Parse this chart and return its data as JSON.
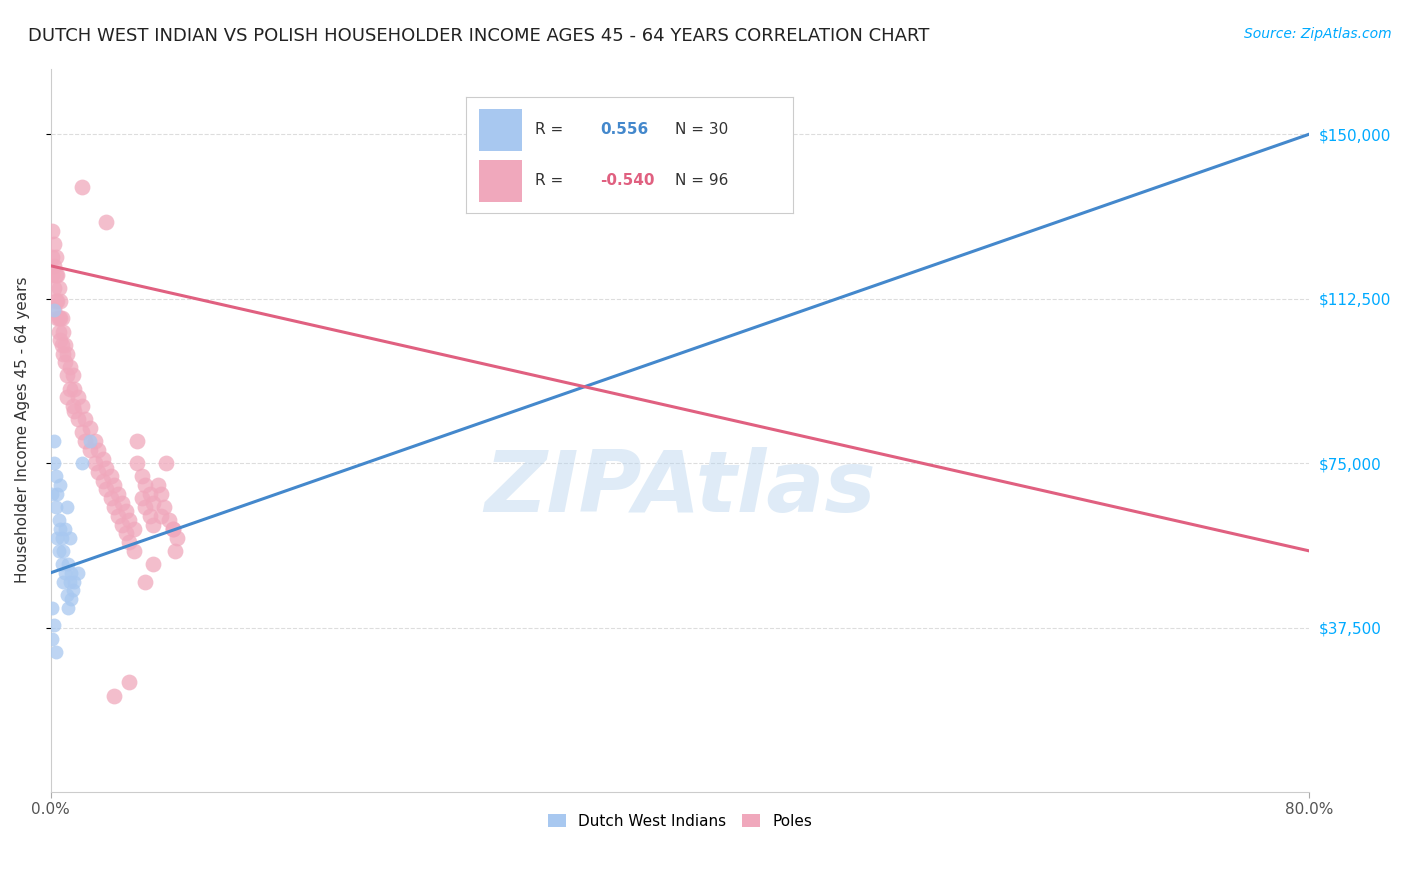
{
  "title": "DUTCH WEST INDIAN VS POLISH HOUSEHOLDER INCOME AGES 45 - 64 YEARS CORRELATION CHART",
  "source": "Source: ZipAtlas.com",
  "ylabel": "Householder Income Ages 45 - 64 years",
  "yticks": [
    37500,
    75000,
    112500,
    150000
  ],
  "ytick_labels": [
    "$37,500",
    "$75,000",
    "$112,500",
    "$150,000"
  ],
  "blue_color": "#a8c8f0",
  "pink_color": "#f0a8bc",
  "blue_line_color": "#4488cc",
  "pink_line_color": "#e06080",
  "watermark": "ZIPAtlas",
  "blue_line_x0": 0.0,
  "blue_line_y0": 50000,
  "blue_line_x1": 0.8,
  "blue_line_y1": 150000,
  "pink_line_x0": 0.0,
  "pink_line_y0": 120000,
  "pink_line_x1": 0.8,
  "pink_line_y1": 55000,
  "blue_points": [
    [
      0.001,
      68000
    ],
    [
      0.002,
      75000
    ],
    [
      0.002,
      80000
    ],
    [
      0.003,
      65000
    ],
    [
      0.003,
      72000
    ],
    [
      0.004,
      58000
    ],
    [
      0.004,
      68000
    ],
    [
      0.005,
      55000
    ],
    [
      0.005,
      62000
    ],
    [
      0.006,
      60000
    ],
    [
      0.006,
      70000
    ],
    [
      0.007,
      52000
    ],
    [
      0.007,
      58000
    ],
    [
      0.008,
      48000
    ],
    [
      0.008,
      55000
    ],
    [
      0.009,
      50000
    ],
    [
      0.009,
      60000
    ],
    [
      0.01,
      65000
    ],
    [
      0.01,
      45000
    ],
    [
      0.011,
      42000
    ],
    [
      0.011,
      52000
    ],
    [
      0.012,
      48000
    ],
    [
      0.012,
      58000
    ],
    [
      0.013,
      44000
    ],
    [
      0.013,
      50000
    ],
    [
      0.014,
      46000
    ],
    [
      0.015,
      48000
    ],
    [
      0.017,
      50000
    ],
    [
      0.02,
      75000
    ],
    [
      0.025,
      80000
    ],
    [
      0.001,
      42000
    ],
    [
      0.001,
      35000
    ],
    [
      0.002,
      38000
    ],
    [
      0.003,
      32000
    ],
    [
      0.002,
      110000
    ]
  ],
  "pink_points": [
    [
      0.001,
      128000
    ],
    [
      0.001,
      122000
    ],
    [
      0.001,
      118000
    ],
    [
      0.002,
      125000
    ],
    [
      0.002,
      120000
    ],
    [
      0.002,
      115000
    ],
    [
      0.002,
      110000
    ],
    [
      0.003,
      122000
    ],
    [
      0.003,
      118000
    ],
    [
      0.003,
      112000
    ],
    [
      0.004,
      118000
    ],
    [
      0.004,
      112000
    ],
    [
      0.004,
      108000
    ],
    [
      0.005,
      115000
    ],
    [
      0.005,
      108000
    ],
    [
      0.005,
      105000
    ],
    [
      0.006,
      112000
    ],
    [
      0.006,
      108000
    ],
    [
      0.006,
      103000
    ],
    [
      0.007,
      108000
    ],
    [
      0.007,
      102000
    ],
    [
      0.008,
      105000
    ],
    [
      0.008,
      100000
    ],
    [
      0.009,
      102000
    ],
    [
      0.009,
      98000
    ],
    [
      0.01,
      100000
    ],
    [
      0.01,
      95000
    ],
    [
      0.01,
      90000
    ],
    [
      0.012,
      97000
    ],
    [
      0.012,
      92000
    ],
    [
      0.014,
      95000
    ],
    [
      0.014,
      88000
    ],
    [
      0.015,
      92000
    ],
    [
      0.015,
      87000
    ],
    [
      0.017,
      90000
    ],
    [
      0.017,
      85000
    ],
    [
      0.02,
      88000
    ],
    [
      0.02,
      82000
    ],
    [
      0.022,
      85000
    ],
    [
      0.022,
      80000
    ],
    [
      0.025,
      83000
    ],
    [
      0.025,
      78000
    ],
    [
      0.028,
      80000
    ],
    [
      0.028,
      75000
    ],
    [
      0.03,
      78000
    ],
    [
      0.03,
      73000
    ],
    [
      0.033,
      76000
    ],
    [
      0.033,
      71000
    ],
    [
      0.035,
      74000
    ],
    [
      0.035,
      69000
    ],
    [
      0.038,
      72000
    ],
    [
      0.038,
      67000
    ],
    [
      0.04,
      70000
    ],
    [
      0.04,
      65000
    ],
    [
      0.043,
      68000
    ],
    [
      0.043,
      63000
    ],
    [
      0.045,
      66000
    ],
    [
      0.045,
      61000
    ],
    [
      0.048,
      64000
    ],
    [
      0.048,
      59000
    ],
    [
      0.05,
      62000
    ],
    [
      0.05,
      57000
    ],
    [
      0.053,
      60000
    ],
    [
      0.053,
      55000
    ],
    [
      0.055,
      80000
    ],
    [
      0.055,
      75000
    ],
    [
      0.058,
      72000
    ],
    [
      0.058,
      67000
    ],
    [
      0.06,
      70000
    ],
    [
      0.06,
      65000
    ],
    [
      0.063,
      68000
    ],
    [
      0.063,
      63000
    ],
    [
      0.065,
      66000
    ],
    [
      0.065,
      61000
    ],
    [
      0.068,
      70000
    ],
    [
      0.07,
      68000
    ],
    [
      0.07,
      63000
    ],
    [
      0.072,
      65000
    ],
    [
      0.075,
      62000
    ],
    [
      0.078,
      60000
    ],
    [
      0.02,
      138000
    ],
    [
      0.035,
      130000
    ],
    [
      0.05,
      25000
    ],
    [
      0.04,
      22000
    ],
    [
      0.06,
      48000
    ],
    [
      0.065,
      52000
    ],
    [
      0.073,
      75000
    ],
    [
      0.078,
      60000
    ],
    [
      0.079,
      55000
    ],
    [
      0.08,
      58000
    ]
  ],
  "blue_marker_size": 100,
  "pink_marker_size": 130,
  "xlim": [
    0.0,
    0.8
  ],
  "ylim": [
    0,
    165000
  ],
  "grid_color": "#dddddd",
  "title_fontsize": 13,
  "axis_label_fontsize": 11,
  "tick_fontsize": 11,
  "source_fontsize": 10,
  "tick_color": "#00aaff",
  "source_color": "#00aaff"
}
